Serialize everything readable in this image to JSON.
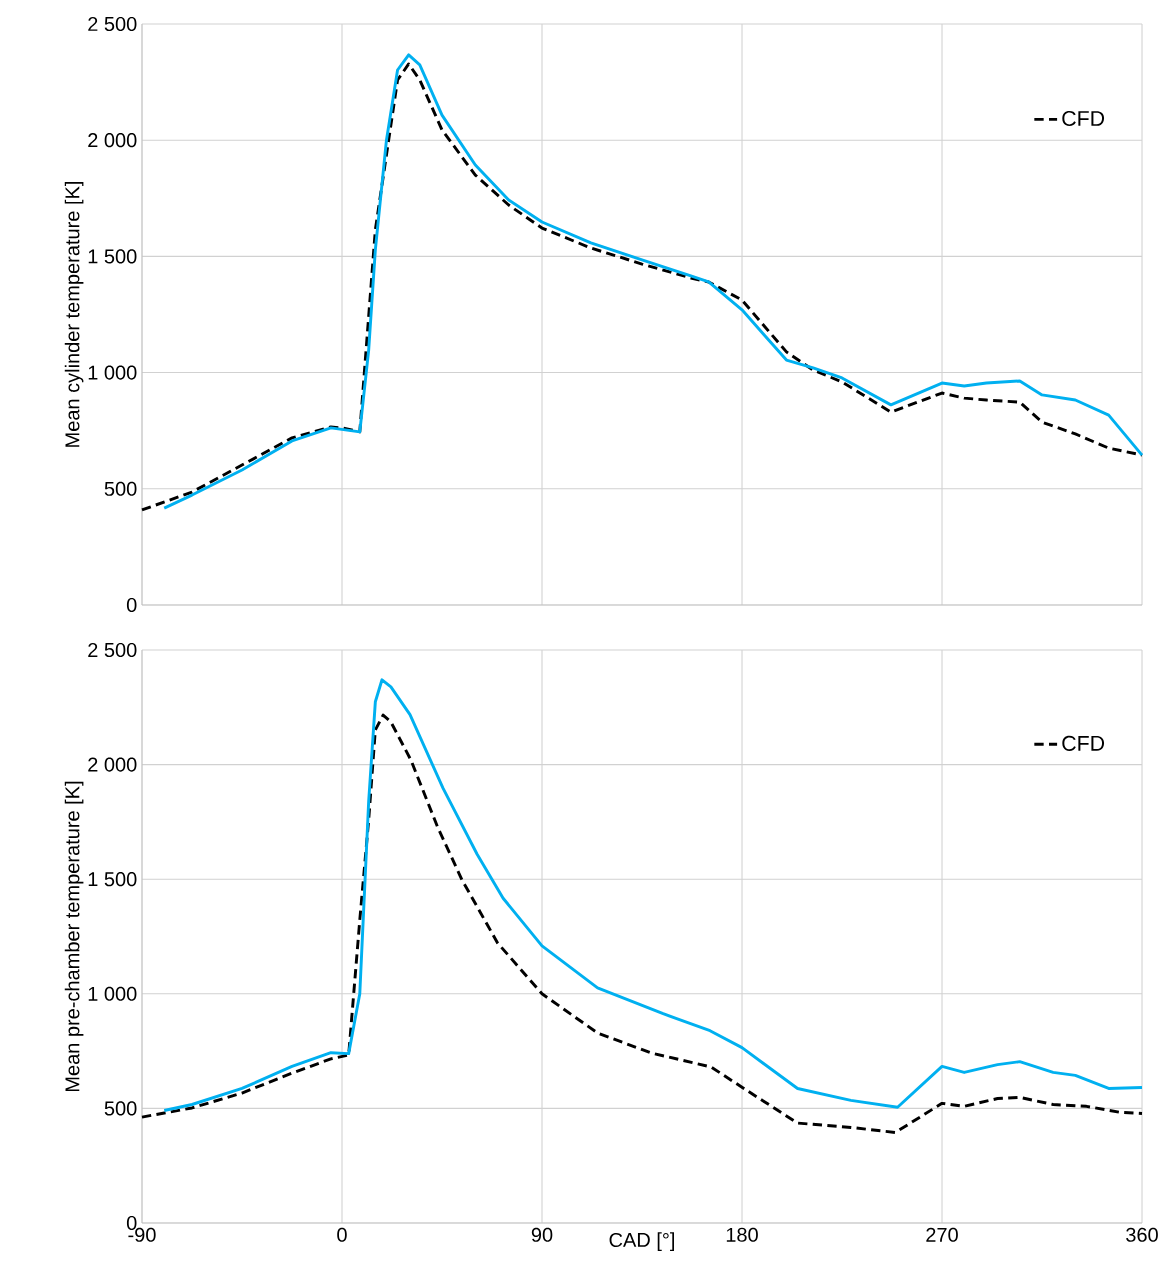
{
  "chart_data": [
    {
      "type": "line",
      "ylabel": "Mean cylinder temperature [K]",
      "xlim": [
        -90,
        360
      ],
      "xticks": [
        -90,
        0,
        90,
        180,
        270,
        360
      ],
      "ylim": [
        0,
        2500
      ],
      "yticks": [
        0,
        500,
        {
          "value": 1000,
          "label": "1 000"
        },
        {
          "value": 1500,
          "label": "1 500"
        },
        {
          "value": 2000,
          "label": "2 000"
        },
        {
          "value": 2500,
          "label": "2 500"
        }
      ],
      "tick_labels": "y",
      "grid": true,
      "legend": "top right",
      "series": [
        {
          "name": "CFD",
          "color": "#000000",
          "line_style": "dashed",
          "x": [
            -90,
            -67.5,
            -45,
            -22.5,
            -5,
            0,
            8,
            12,
            15,
            20,
            25,
            30,
            35,
            45,
            60,
            75,
            90,
            112,
            135,
            157,
            165,
            180,
            200,
            212,
            225,
            247,
            270,
            280,
            290,
            305,
            315,
            330,
            345,
            360
          ],
          "values": [
            409,
            486,
            602,
            719,
            766,
            762,
            745,
            null,
            1614,
            null,
            2259,
            2328,
            2259,
            2044,
            1850,
            1721,
            1622,
            1536,
            1467,
            1407,
            1390,
            1312,
            1089,
            1011,
            960,
            830,
            912,
            890,
            882,
            873,
            787,
            736,
            675,
            645
          ]
        },
        {
          "color": "#00b0f0",
          "line_style": "solid",
          "x": [
            -80,
            -67.5,
            -45,
            -22.5,
            -5,
            8,
            12,
            15,
            20,
            25,
            30,
            35,
            45,
            60,
            75,
            90,
            112,
            135,
            157,
            165,
            180,
            200,
            212,
            225,
            247,
            270,
            280,
            290,
            305,
            315,
            330,
            345,
            360
          ],
          "values": [
            417,
            473,
            581,
            706,
            762,
            745,
            1097,
            1528,
            2000,
            2302,
            2367,
            2324,
            2108,
            1893,
            1743,
            1648,
            1558,
            1485,
            1416,
            1390,
            1270,
            1054,
            1020,
            977,
            861,
            955,
            942,
            955,
            964,
            904,
            882,
            817,
            645
          ]
        }
      ]
    },
    {
      "type": "line",
      "xlabel": "CAD [°]",
      "ylabel": "Mean pre-chamber temperature [K]",
      "xlim": [
        -90,
        360
      ],
      "xticks": [
        -90,
        0,
        90,
        180,
        270,
        360
      ],
      "ylim": [
        0,
        2500
      ],
      "yticks": [
        0,
        500,
        {
          "value": 1000,
          "label": "1 000"
        },
        {
          "value": 1500,
          "label": "1 500"
        },
        {
          "value": 2000,
          "label": "2 000"
        },
        {
          "value": 2500,
          "label": "2 500"
        }
      ],
      "grid": true,
      "legend": "top right",
      "series": [
        {
          "name": "CFD",
          "color": "#000000",
          "line_style": "dashed",
          "x": [
            -90,
            -67.5,
            -45,
            -22.5,
            -5,
            3,
            8,
            12,
            15,
            18.5,
            22,
            31,
            43,
            54,
            70,
            90,
            115,
            139,
            166,
            184,
            205,
            229,
            249,
            270,
            280,
            295,
            305,
            320,
            335,
            350,
            360
          ],
          "values": [
            462,
            502,
            567,
            654,
            716,
            733,
            1322,
            1758,
            2151,
            2216,
            2186,
            2020,
            1728,
            1497,
            1222,
            1000,
            829,
            742,
            681,
            567,
            436,
            417,
            395,
            522,
            509,
            543,
            548,
            517,
            509,
            483,
            478
          ]
        },
        {
          "color": "#00b0f0",
          "line_style": "solid",
          "x": [
            -80,
            -67.5,
            -45,
            -22.5,
            -5,
            3,
            8,
            12,
            15,
            18,
            22,
            30.6,
            45.5,
            60.8,
            72.5,
            90,
            115,
            144.5,
            165.6,
            180,
            205,
            229,
            250,
            270,
            280,
            295,
            305,
            320,
            330,
            345,
            360
          ],
          "values": [
            491,
            517,
            587,
            683,
            743,
            739,
            1000,
            1839,
            2274,
            2370,
            2339,
            2218,
            1896,
            1609,
            1417,
            1209,
            1026,
            913,
            839,
            765,
            587,
            535,
            505,
            683,
            657,
            691,
            704,
            657,
            644,
            587,
            591
          ]
        }
      ]
    }
  ]
}
